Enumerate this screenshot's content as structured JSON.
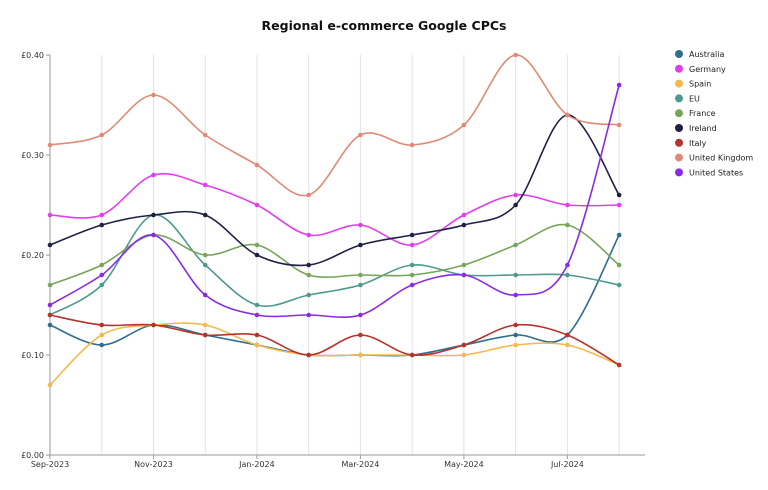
{
  "chart_data": {
    "type": "line",
    "title": "Regional e-commerce Google CPCs",
    "xlabel": "",
    "ylabel": "",
    "ylim": [
      0,
      0.4
    ],
    "y_ticks": [
      "£0.00",
      "£0.10",
      "£0.20",
      "£0.30",
      "£0.40"
    ],
    "y_tick_values": [
      0,
      0.1,
      0.2,
      0.3,
      0.4
    ],
    "x": [
      "2023-09",
      "2023-10",
      "2023-11",
      "2023-12",
      "2024-01",
      "2024-02",
      "2024-03",
      "2024-04",
      "2024-05",
      "2024-06",
      "2024-07",
      "2024-08"
    ],
    "x_tick_labels": [
      "Sep-2023",
      "Nov-2023",
      "Jan-2024",
      "Mar-2024",
      "May-2024",
      "Jul-2024"
    ],
    "x_tick_indices": [
      0,
      2,
      4,
      6,
      8,
      10
    ],
    "grid": "vertical",
    "legend": "right",
    "series": [
      {
        "name": "Australia",
        "color": "#2f6e8e",
        "values": [
          0.13,
          0.11,
          0.13,
          0.12,
          0.11,
          0.1,
          0.1,
          0.1,
          0.11,
          0.12,
          0.12,
          0.22
        ]
      },
      {
        "name": "Germany",
        "color": "#e43df0",
        "values": [
          0.24,
          0.24,
          0.28,
          0.27,
          0.25,
          0.22,
          0.23,
          0.21,
          0.24,
          0.26,
          0.25,
          0.25
        ]
      },
      {
        "name": "Spain",
        "color": "#f5b84e",
        "values": [
          0.07,
          0.12,
          0.13,
          0.13,
          0.11,
          0.1,
          0.1,
          0.1,
          0.1,
          0.11,
          0.11,
          0.09
        ]
      },
      {
        "name": "EU",
        "color": "#4e9a90",
        "values": [
          0.14,
          0.17,
          0.24,
          0.19,
          0.15,
          0.16,
          0.17,
          0.19,
          0.18,
          0.18,
          0.18,
          0.17
        ]
      },
      {
        "name": "France",
        "color": "#77a55a",
        "values": [
          0.17,
          0.19,
          0.22,
          0.2,
          0.21,
          0.18,
          0.18,
          0.18,
          0.19,
          0.21,
          0.23,
          0.19
        ]
      },
      {
        "name": "Ireland",
        "color": "#1f2046",
        "values": [
          0.21,
          0.23,
          0.24,
          0.24,
          0.2,
          0.19,
          0.21,
          0.22,
          0.23,
          0.25,
          0.34,
          0.26
        ]
      },
      {
        "name": "Italy",
        "color": "#b5332a",
        "values": [
          0.14,
          0.13,
          0.13,
          0.12,
          0.12,
          0.1,
          0.12,
          0.1,
          0.11,
          0.13,
          0.12,
          0.09
        ]
      },
      {
        "name": "United Kingdom",
        "color": "#df8a76",
        "values": [
          0.31,
          0.32,
          0.36,
          0.32,
          0.29,
          0.26,
          0.32,
          0.31,
          0.33,
          0.4,
          0.34,
          0.33
        ]
      },
      {
        "name": "United States",
        "color": "#8a2be2",
        "values": [
          0.15,
          0.18,
          0.22,
          0.16,
          0.14,
          0.14,
          0.14,
          0.17,
          0.18,
          0.16,
          0.19,
          0.37
        ]
      }
    ]
  }
}
